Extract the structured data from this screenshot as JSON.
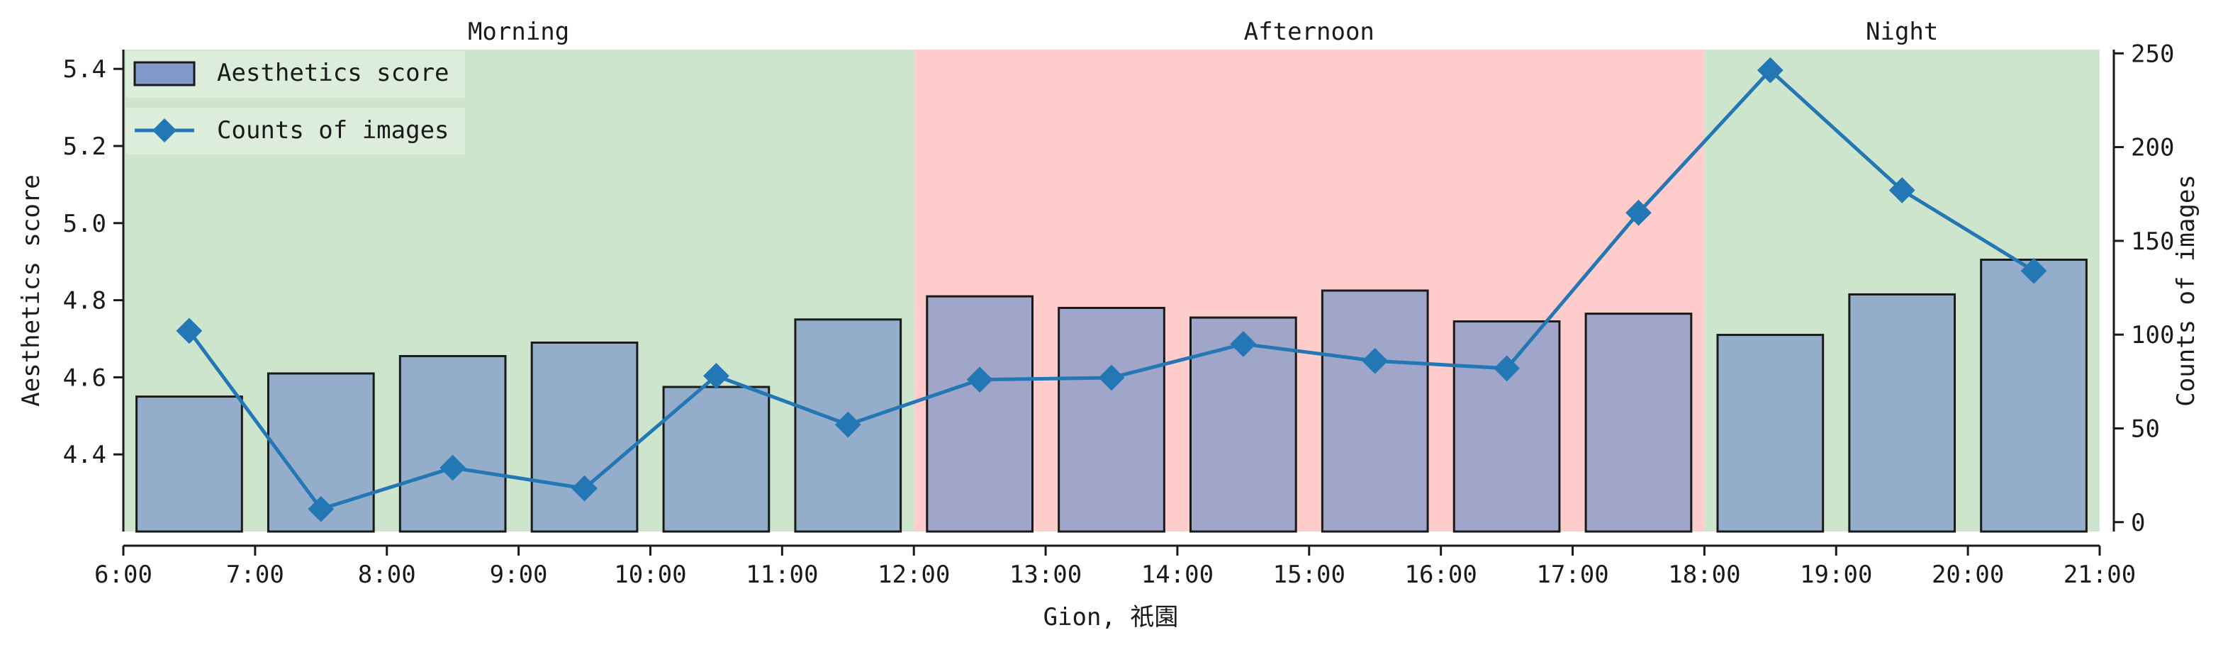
{
  "chart_data": {
    "type": "bar",
    "title": "",
    "xlabel": "Gion, 祇園",
    "ylabel": "Aesthetics score",
    "y2label": "Counts of images",
    "ylim": [
      4.2,
      5.45
    ],
    "y2lim": [
      -5,
      252
    ],
    "xlim": [
      6,
      21
    ],
    "x_tick_values": [
      6,
      7,
      8,
      9,
      10,
      11,
      12,
      13,
      14,
      15,
      16,
      17,
      18,
      19,
      20,
      21
    ],
    "x_tick_labels": [
      "6:00",
      "7:00",
      "8:00",
      "9:00",
      "10:00",
      "11:00",
      "12:00",
      "13:00",
      "14:00",
      "15:00",
      "16:00",
      "17:00",
      "18:00",
      "19:00",
      "20:00",
      "21:00"
    ],
    "y_ticks": [
      "4.4",
      "4.6",
      "4.8",
      "5.0",
      "5.2",
      "5.4"
    ],
    "y2_ticks": [
      "0",
      "50",
      "100",
      "150",
      "200",
      "250"
    ],
    "periods": [
      {
        "label": "Morning",
        "start": 6,
        "end": 12,
        "color": "#cde5cd"
      },
      {
        "label": "Afternoon",
        "start": 12,
        "end": 18,
        "color": "#ffcccc"
      },
      {
        "label": "Night",
        "start": 18,
        "end": 21,
        "color": "#cde5cd"
      }
    ],
    "x": [
      6.5,
      7.5,
      8.5,
      9.5,
      10.5,
      11.5,
      12.5,
      13.5,
      14.5,
      15.5,
      16.5,
      17.5,
      18.5,
      19.5,
      20.5
    ],
    "series": [
      {
        "name": "Aesthetics score",
        "kind": "bar",
        "axis": "left",
        "values": [
          4.55,
          4.61,
          4.655,
          4.69,
          4.575,
          4.75,
          4.81,
          4.78,
          4.755,
          4.825,
          4.745,
          4.765,
          4.71,
          4.815,
          4.905
        ],
        "color": "#8099c9"
      },
      {
        "name": "Counts of images",
        "kind": "line",
        "axis": "right",
        "marker": "diamond",
        "values": [
          102,
          7,
          29,
          18,
          78,
          52,
          76,
          77,
          95,
          86,
          82,
          165,
          241,
          177,
          134
        ],
        "color": "#2277b4"
      }
    ],
    "legend": "top-left",
    "grid": false
  }
}
